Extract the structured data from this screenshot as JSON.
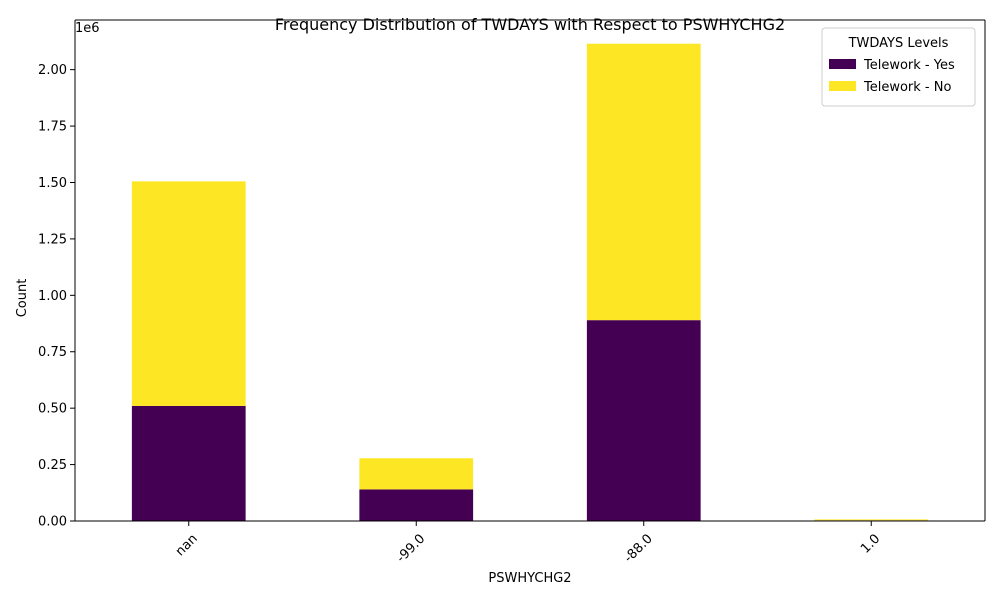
{
  "chart_data": {
    "type": "bar",
    "stacked": true,
    "title": "Frequency Distribution of TWDAYS with Respect to PSWHYCHG2",
    "xlabel": "PSWHYCHG2",
    "ylabel": "Count",
    "y_offset_label": "1e6",
    "categories": [
      "nan",
      "-99.0",
      "-88.0",
      "1.0"
    ],
    "series": [
      {
        "name": "Telework - Yes",
        "color": "#440154",
        "values": [
          510000,
          140000,
          890000,
          3000
        ]
      },
      {
        "name": "Telework - No",
        "color": "#fde725",
        "values": [
          995000,
          138000,
          1225000,
          4000
        ]
      }
    ],
    "ylim": [
      0,
      2220000
    ],
    "yticks": [
      0,
      250000,
      500000,
      750000,
      1000000,
      1250000,
      1500000,
      1750000,
      2000000
    ],
    "ytick_labels": [
      "0.00",
      "0.25",
      "0.50",
      "0.75",
      "1.00",
      "1.25",
      "1.50",
      "1.75",
      "2.00"
    ],
    "x_tick_rotation": 45,
    "grid": false,
    "legend": {
      "title": "TWDAYS Levels",
      "position": "top-right"
    }
  }
}
